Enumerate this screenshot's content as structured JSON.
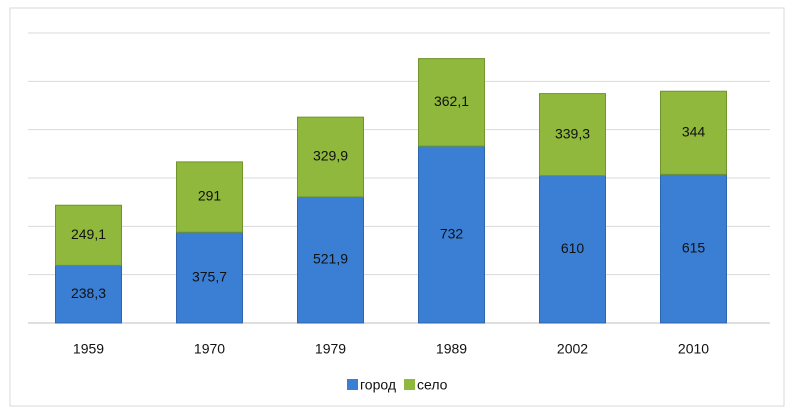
{
  "chart_data": {
    "type": "bar",
    "stacked": true,
    "categories": [
      "1959",
      "1970",
      "1979",
      "1989",
      "2002",
      "2010"
    ],
    "series": [
      {
        "name": "город",
        "color": "#3b7fd4",
        "values": [
          238.3,
          375.7,
          521.9,
          732,
          610,
          615
        ],
        "value_labels": [
          "238,3",
          "375,7",
          "521,9",
          "732",
          "610",
          "615"
        ]
      },
      {
        "name": "село",
        "color": "#8fb83c",
        "values": [
          249.1,
          291,
          329.9,
          362.1,
          339.3,
          344
        ],
        "value_labels": [
          "249,1",
          "291",
          "329,9",
          "362,1",
          "339,3",
          "344"
        ]
      }
    ],
    "ylim": [
      0,
      1200
    ],
    "yticks": [
      0,
      200,
      400,
      600,
      800,
      1000,
      1200
    ],
    "grid": true,
    "legend": "bottom"
  }
}
